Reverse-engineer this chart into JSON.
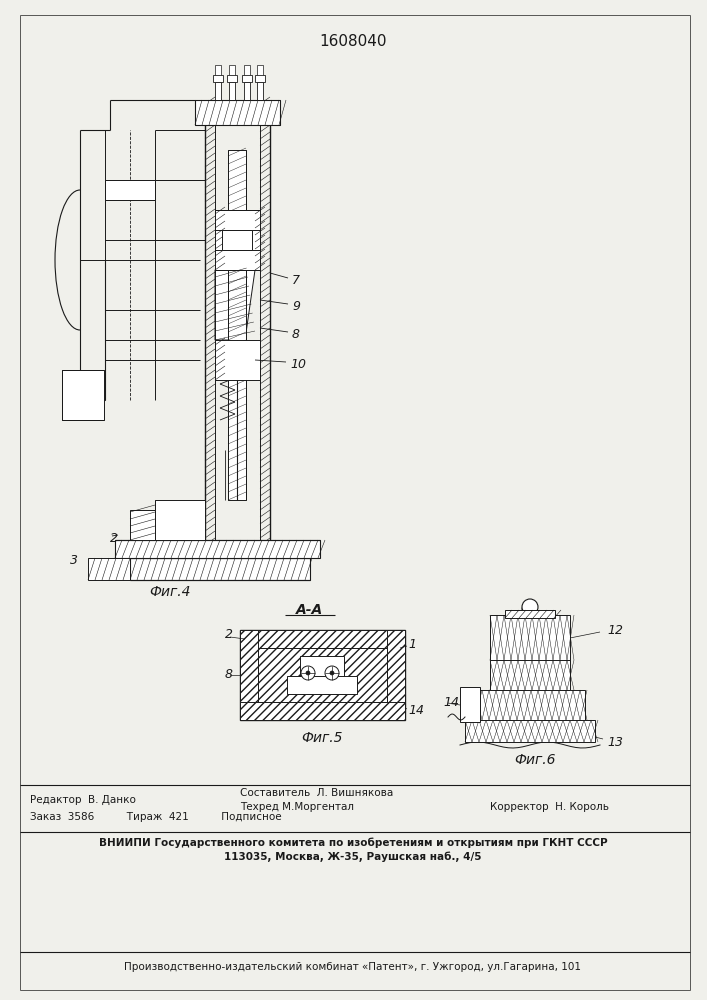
{
  "title": "1608040",
  "bg_color": "#f0f0eb",
  "line_color": "#1a1a1a",
  "fig4_label": "Фиг.4",
  "fig5_label": "Фиг.5",
  "fig6_label": "Фиг.6",
  "section_label": "А-А",
  "footer_order_line": "Заказ  3586          Тираж  421          Подписное",
  "footer_vniiipi": "ВНИИПИ Государственного комитета по изобретениям и открытиям при ГКНТ СССР",
  "footer_address": "113035, Москва, Ж-35, Раушская наб., 4/5",
  "footer_publisher": "Производственно-издательский комбинат «Патент», г. Ужгород, ул.Гагарина, 101",
  "footer_editor": "Редактор  В. Данко",
  "footer_author": "Составитель  Л. Вишнякова",
  "footer_techred": "Техред М.Моргентал",
  "footer_corrector": "Корректор  Н. Король"
}
